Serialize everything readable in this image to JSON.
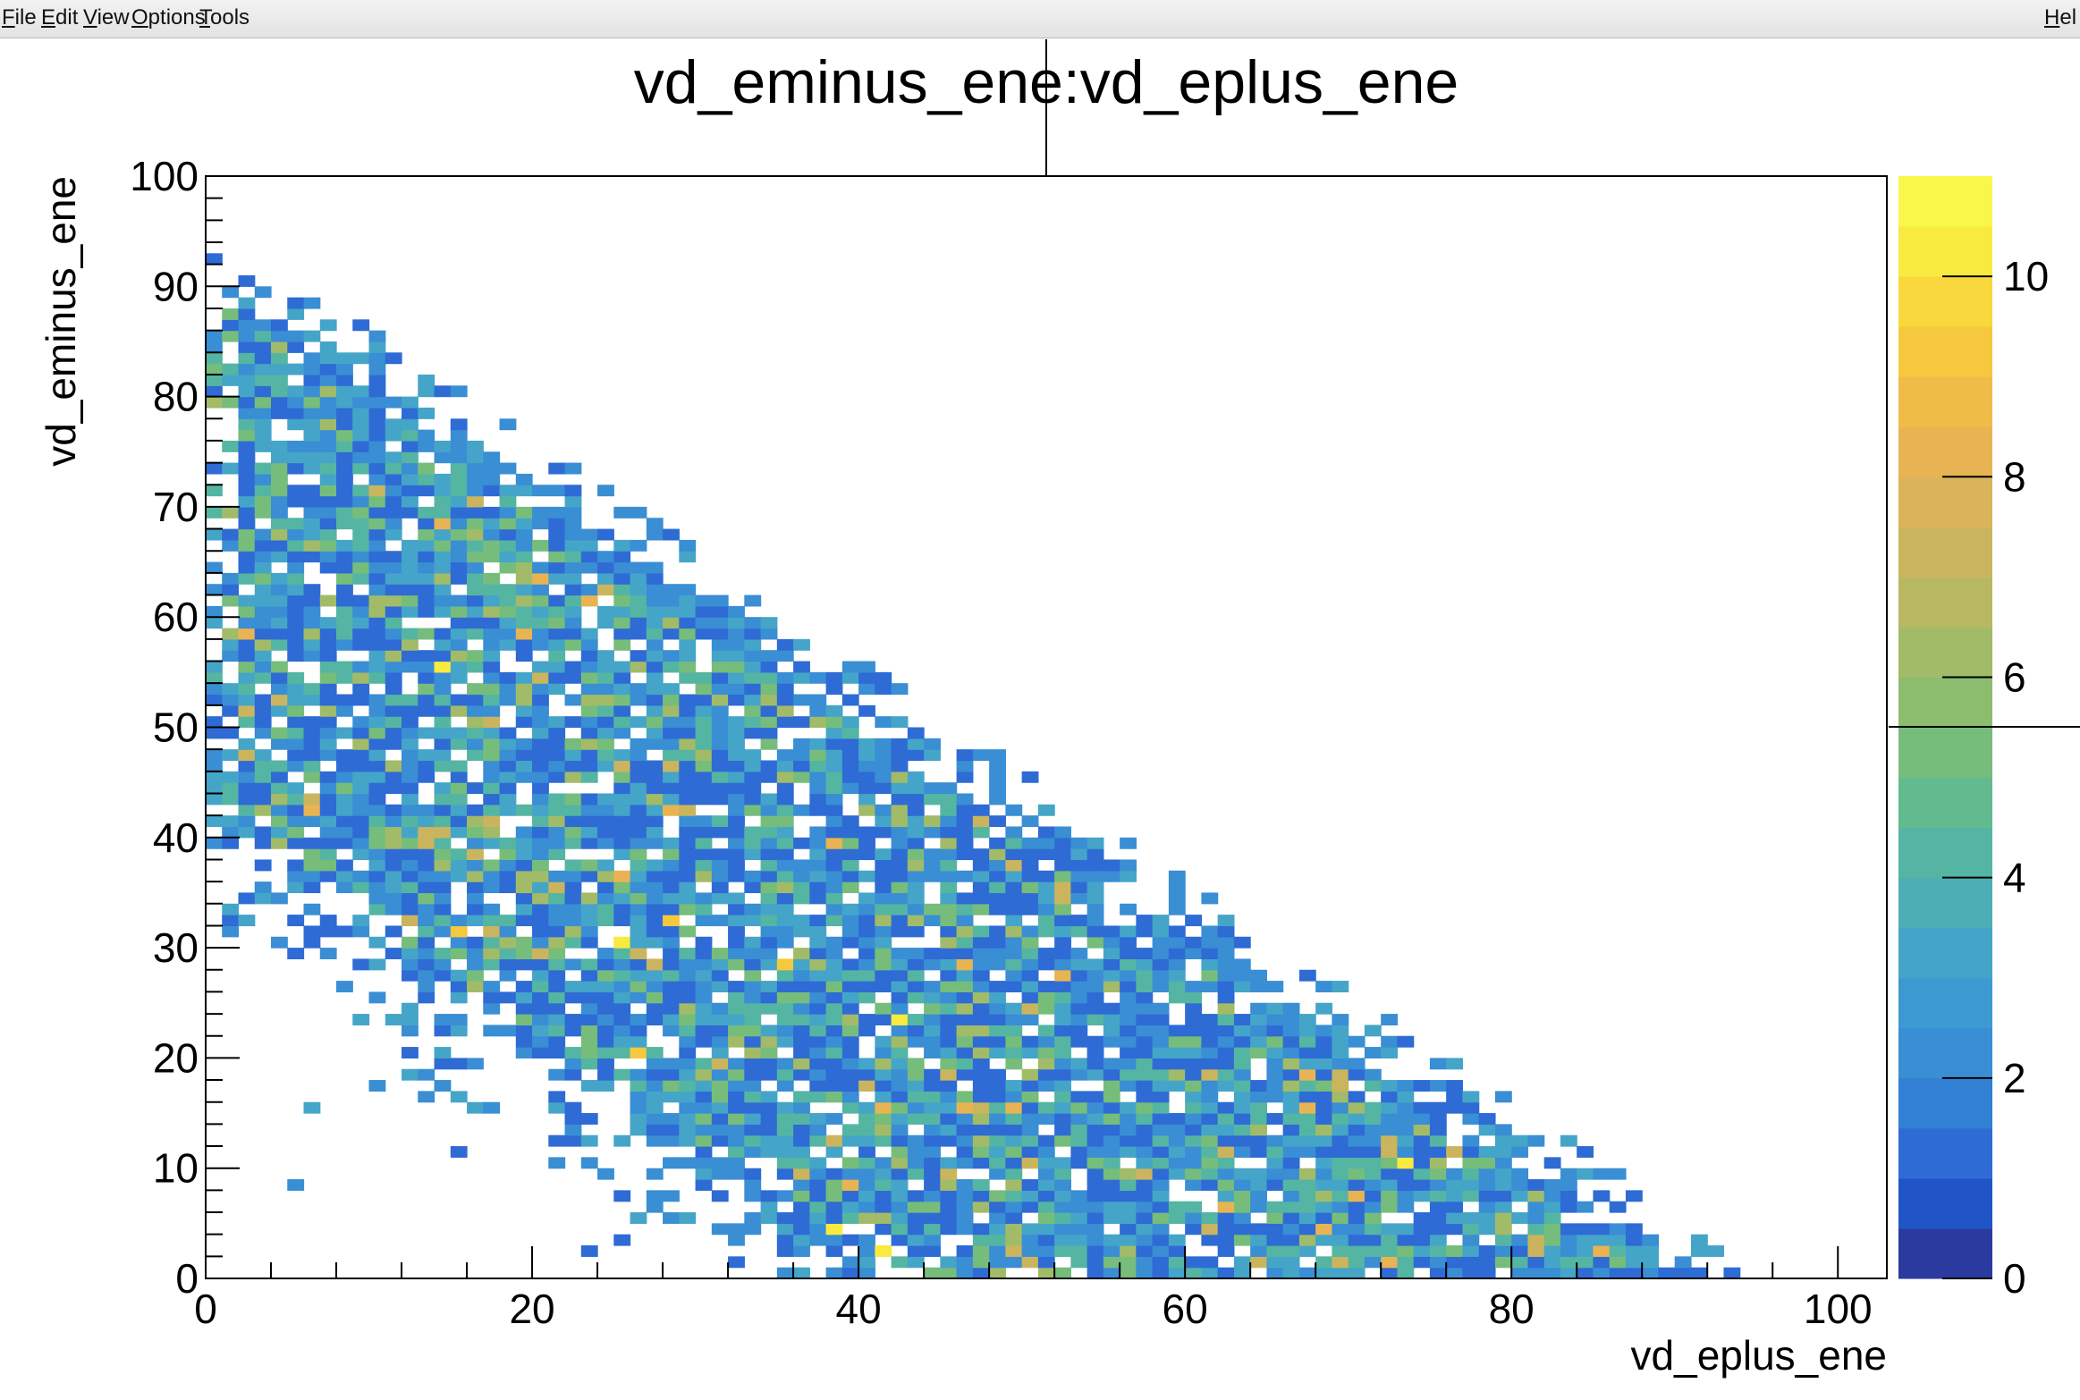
{
  "menubar": {
    "items": [
      {
        "label": "File",
        "ul": "F",
        "rest": "ile"
      },
      {
        "label": "Edit",
        "ul": "E",
        "rest": "dit"
      },
      {
        "label": "View",
        "ul": "V",
        "rest": "iew"
      },
      {
        "label": "Options",
        "ul": "O",
        "rest": "ptions"
      },
      {
        "label": "Tools",
        "ul": "T",
        "rest": "ools"
      }
    ],
    "help": {
      "label": "Hel",
      "ul": "H",
      "rest": "el"
    }
  },
  "chart_data": {
    "type": "heatmap",
    "title": "vd_eminus_ene:vd_eplus_ene",
    "xlabel": "vd_eplus_ene",
    "ylabel": "vd_eminus_ene",
    "xlim": [
      0,
      103
    ],
    "ylim": [
      0,
      100
    ],
    "xticks": [
      0,
      20,
      40,
      60,
      80,
      100
    ],
    "yticks": [
      0,
      10,
      20,
      30,
      40,
      50,
      60,
      70,
      80,
      90,
      100
    ],
    "bins": {
      "nx": 103,
      "ny": 100,
      "x_range": [
        0,
        103
      ],
      "y_range": [
        0,
        100
      ]
    },
    "z_range": [
      0,
      11
    ],
    "colorbar": {
      "ticks": [
        0,
        2,
        4,
        6,
        8,
        10
      ],
      "colors": [
        "#2b3a9e",
        "#2154c6",
        "#2e6bd4",
        "#3180d4",
        "#3a8ed4",
        "#3d9ad1",
        "#45a5c8",
        "#4daeb6",
        "#55b5a3",
        "#62ba8f",
        "#76bd7c",
        "#8cbd6f",
        "#a2bb68",
        "#b8b863",
        "#cab55e",
        "#dbb35a",
        "#e8b453",
        "#f0bc48",
        "#f6c83e",
        "#f8d83c",
        "#f9ea40",
        "#f9f74a"
      ]
    },
    "distribution": "uniform-ish triangle x+y<=95, sparse below x+y<=40, counts mostly 1-6, max ~11",
    "grid": false,
    "legend": "none"
  }
}
